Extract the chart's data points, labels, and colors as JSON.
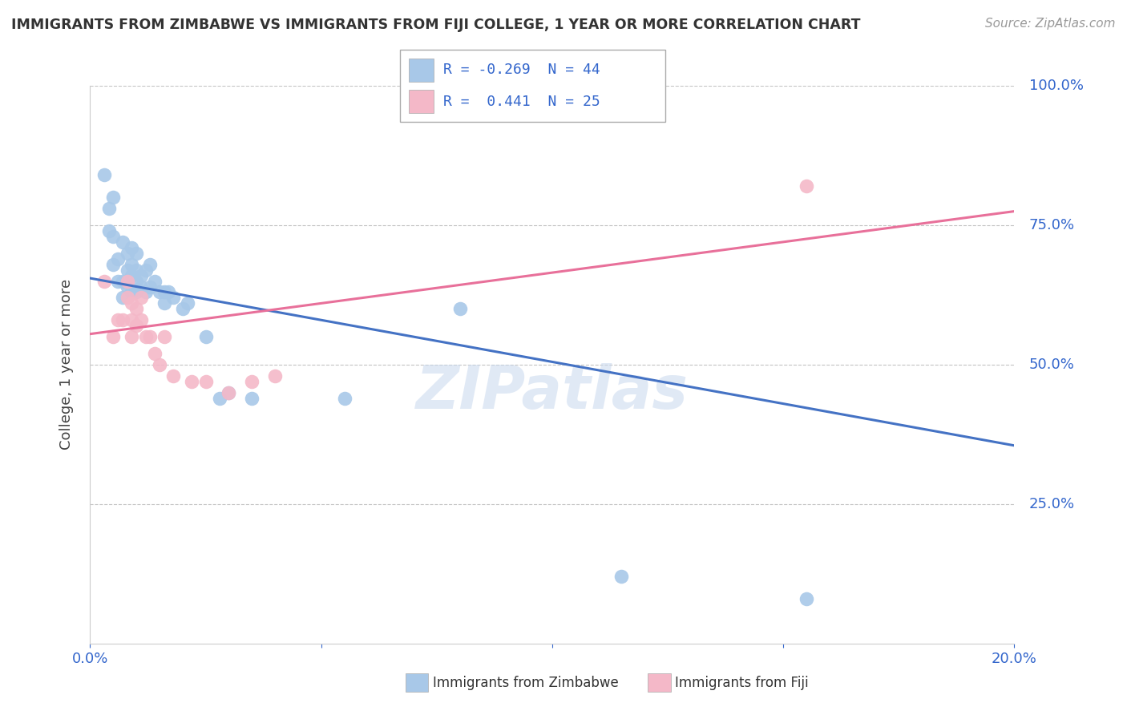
{
  "title": "IMMIGRANTS FROM ZIMBABWE VS IMMIGRANTS FROM FIJI COLLEGE, 1 YEAR OR MORE CORRELATION CHART",
  "source": "Source: ZipAtlas.com",
  "ylabel": "College, 1 year or more",
  "xlim": [
    0.0,
    0.2
  ],
  "ylim": [
    0.0,
    1.0
  ],
  "R_zimbabwe": -0.269,
  "N_zimbabwe": 44,
  "R_fiji": 0.441,
  "N_fiji": 25,
  "color_zimbabwe": "#a8c8e8",
  "color_fiji": "#f4b8c8",
  "line_color_zimbabwe": "#4472c4",
  "line_color_fiji": "#e8709a",
  "legend_color_zimbabwe": "#a8c8e8",
  "legend_color_fiji": "#f4b8c8",
  "zimbabwe_x": [
    0.003,
    0.004,
    0.004,
    0.005,
    0.005,
    0.005,
    0.006,
    0.006,
    0.007,
    0.007,
    0.007,
    0.008,
    0.008,
    0.008,
    0.009,
    0.009,
    0.009,
    0.009,
    0.01,
    0.01,
    0.01,
    0.01,
    0.011,
    0.011,
    0.012,
    0.012,
    0.013,
    0.013,
    0.014,
    0.015,
    0.016,
    0.016,
    0.017,
    0.018,
    0.02,
    0.021,
    0.025,
    0.028,
    0.03,
    0.035,
    0.055,
    0.08,
    0.115,
    0.155
  ],
  "zimbabwe_y": [
    0.84,
    0.78,
    0.74,
    0.68,
    0.73,
    0.8,
    0.65,
    0.69,
    0.62,
    0.65,
    0.72,
    0.64,
    0.67,
    0.7,
    0.63,
    0.66,
    0.68,
    0.71,
    0.63,
    0.65,
    0.67,
    0.7,
    0.64,
    0.66,
    0.63,
    0.67,
    0.64,
    0.68,
    0.65,
    0.63,
    0.61,
    0.63,
    0.63,
    0.62,
    0.6,
    0.61,
    0.55,
    0.44,
    0.45,
    0.44,
    0.44,
    0.6,
    0.12,
    0.08
  ],
  "fiji_x": [
    0.003,
    0.005,
    0.006,
    0.007,
    0.008,
    0.008,
    0.009,
    0.009,
    0.009,
    0.01,
    0.01,
    0.011,
    0.011,
    0.012,
    0.013,
    0.014,
    0.015,
    0.016,
    0.018,
    0.022,
    0.025,
    0.03,
    0.035,
    0.04,
    0.155
  ],
  "fiji_y": [
    0.65,
    0.55,
    0.58,
    0.58,
    0.62,
    0.65,
    0.55,
    0.58,
    0.61,
    0.57,
    0.6,
    0.58,
    0.62,
    0.55,
    0.55,
    0.52,
    0.5,
    0.55,
    0.48,
    0.47,
    0.47,
    0.45,
    0.47,
    0.48,
    0.82
  ],
  "zim_line_x0": 0.0,
  "zim_line_y0": 0.655,
  "zim_line_x1": 0.2,
  "zim_line_y1": 0.355,
  "fiji_line_x0": 0.0,
  "fiji_line_y0": 0.555,
  "fiji_line_x1": 0.2,
  "fiji_line_y1": 0.775
}
